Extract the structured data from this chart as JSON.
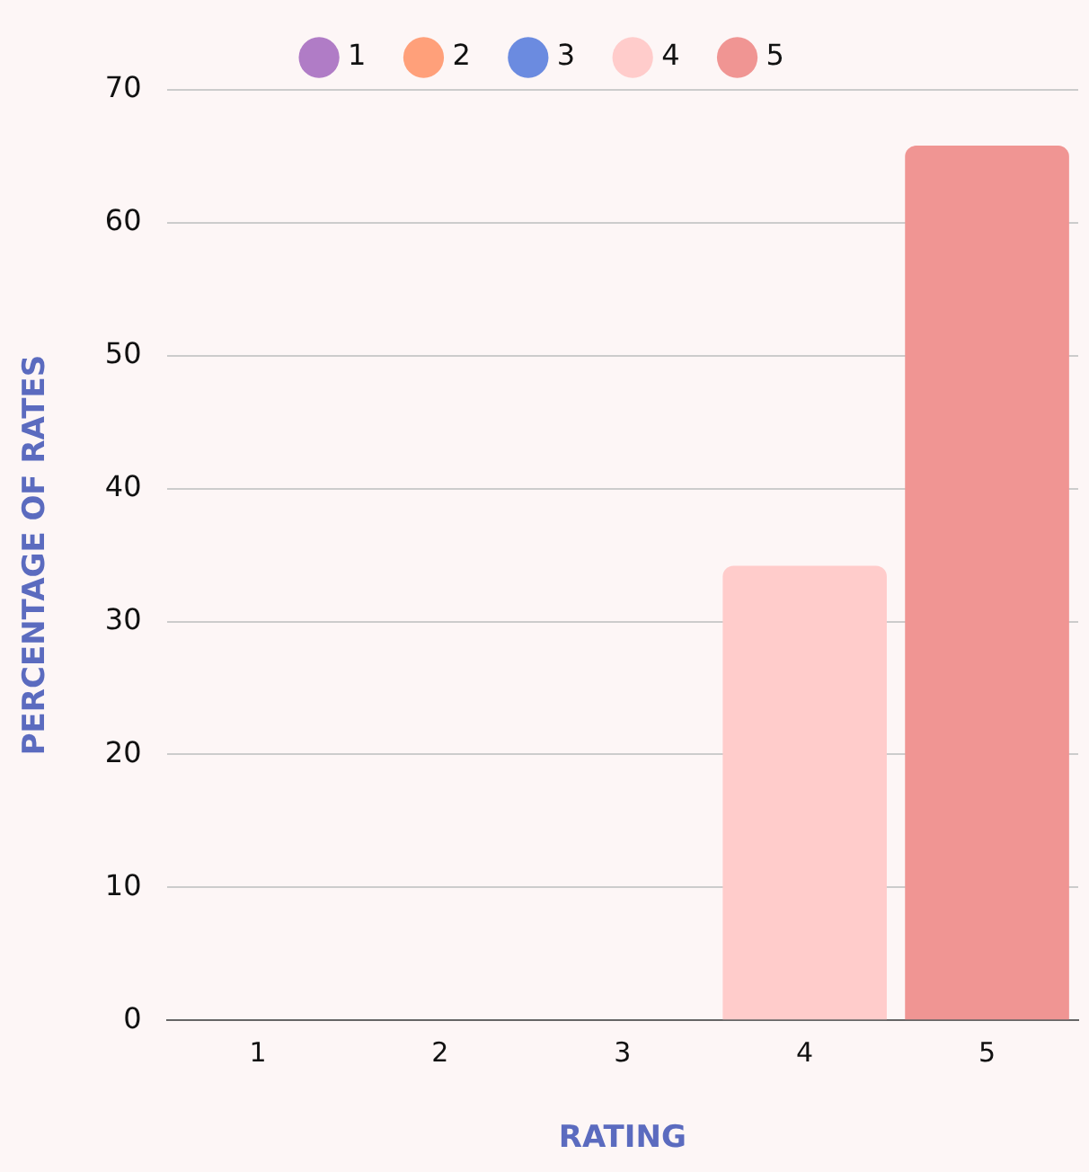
{
  "chart_data": {
    "type": "bar",
    "xlabel": "RATING",
    "ylabel": "PERCENTAGE OF RATES",
    "categories": [
      "1",
      "2",
      "3",
      "4",
      "5"
    ],
    "series": [
      {
        "name": "1",
        "color": "#b07cc6",
        "values": [
          0,
          null,
          null,
          null,
          null
        ]
      },
      {
        "name": "2",
        "color": "#ffa07a",
        "values": [
          null,
          0,
          null,
          null,
          null
        ]
      },
      {
        "name": "3",
        "color": "#6b8be0",
        "values": [
          null,
          null,
          0,
          null,
          null
        ]
      },
      {
        "name": "4",
        "color": "#ffcccb",
        "values": [
          null,
          null,
          null,
          34.2,
          null
        ]
      },
      {
        "name": "5",
        "color": "#f09593",
        "values": [
          null,
          null,
          null,
          null,
          65.8
        ]
      }
    ],
    "ylim": [
      0,
      70
    ],
    "yticks": [
      0,
      10,
      20,
      30,
      40,
      50,
      60,
      70
    ],
    "grid": "y",
    "legend": "top"
  }
}
